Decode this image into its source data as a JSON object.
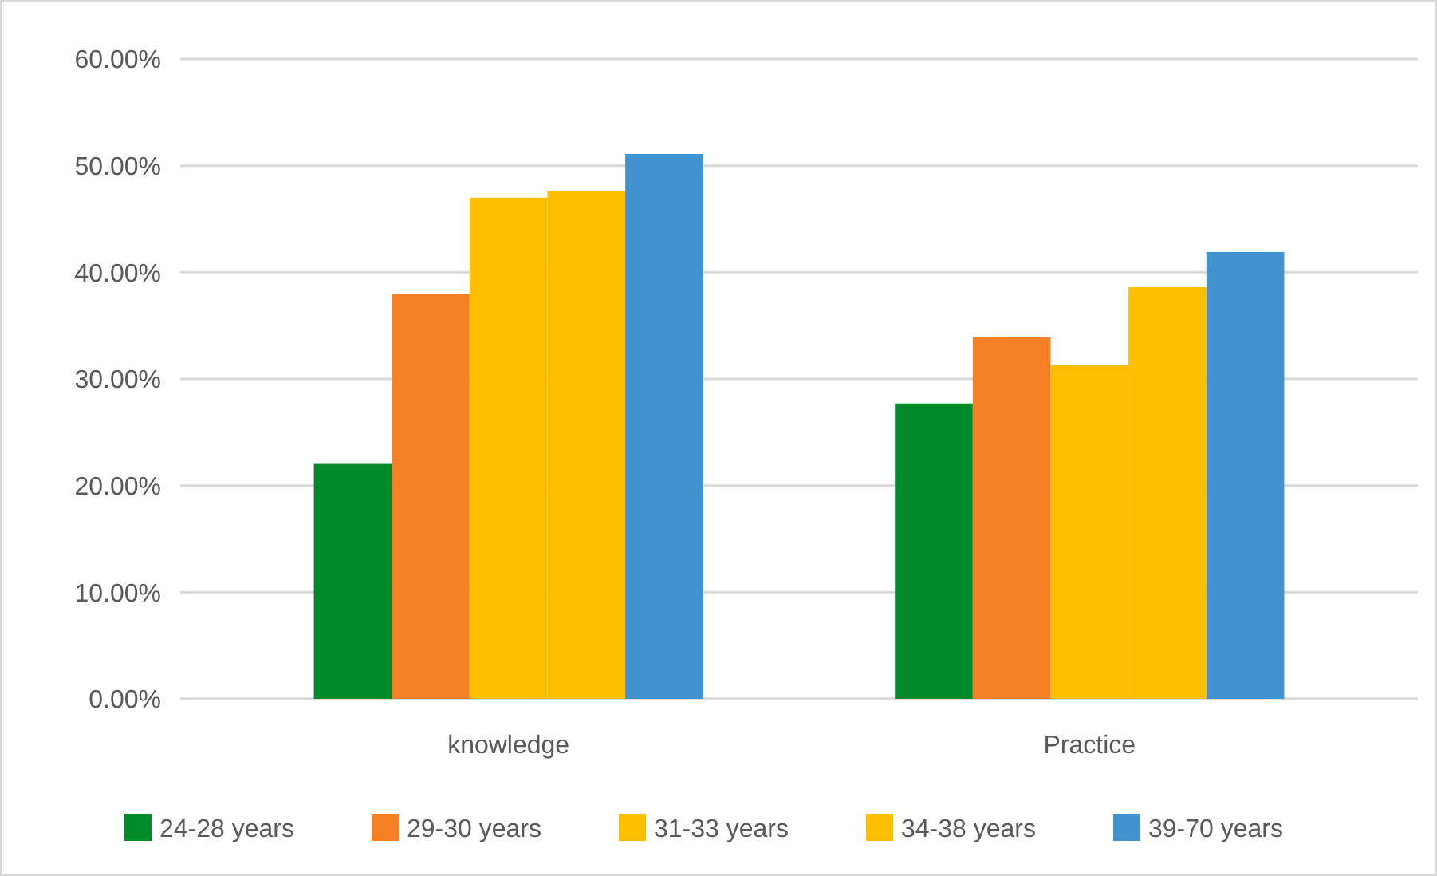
{
  "chart_data": {
    "type": "bar",
    "categories": [
      "knowledge",
      "Practice"
    ],
    "series": [
      {
        "name": "24-28 years",
        "color": "#008a29",
        "values": [
          22.1,
          27.7
        ]
      },
      {
        "name": "29-30 years",
        "color": "#f58025",
        "values": [
          38.0,
          33.9
        ]
      },
      {
        "name": "31-33 years",
        "color": "#ffbf00",
        "values": [
          47.0,
          31.3
        ]
      },
      {
        "name": "34-38 years",
        "color": "#ffbf00",
        "values": [
          47.6,
          38.6
        ]
      },
      {
        "name": "39-70 years",
        "color": "#4292d0",
        "values": [
          51.1,
          41.9
        ]
      }
    ],
    "ylim": [
      0,
      60
    ],
    "yticks": [
      {
        "value": 0,
        "label": "0.00%"
      },
      {
        "value": 10,
        "label": "10.00%"
      },
      {
        "value": 20,
        "label": "20.00%"
      },
      {
        "value": 30,
        "label": "30.00%"
      },
      {
        "value": 40,
        "label": "40.00%"
      },
      {
        "value": 50,
        "label": "50.00%"
      },
      {
        "value": 60,
        "label": "60.00%"
      }
    ],
    "grid": "y",
    "legend": "bottom"
  }
}
